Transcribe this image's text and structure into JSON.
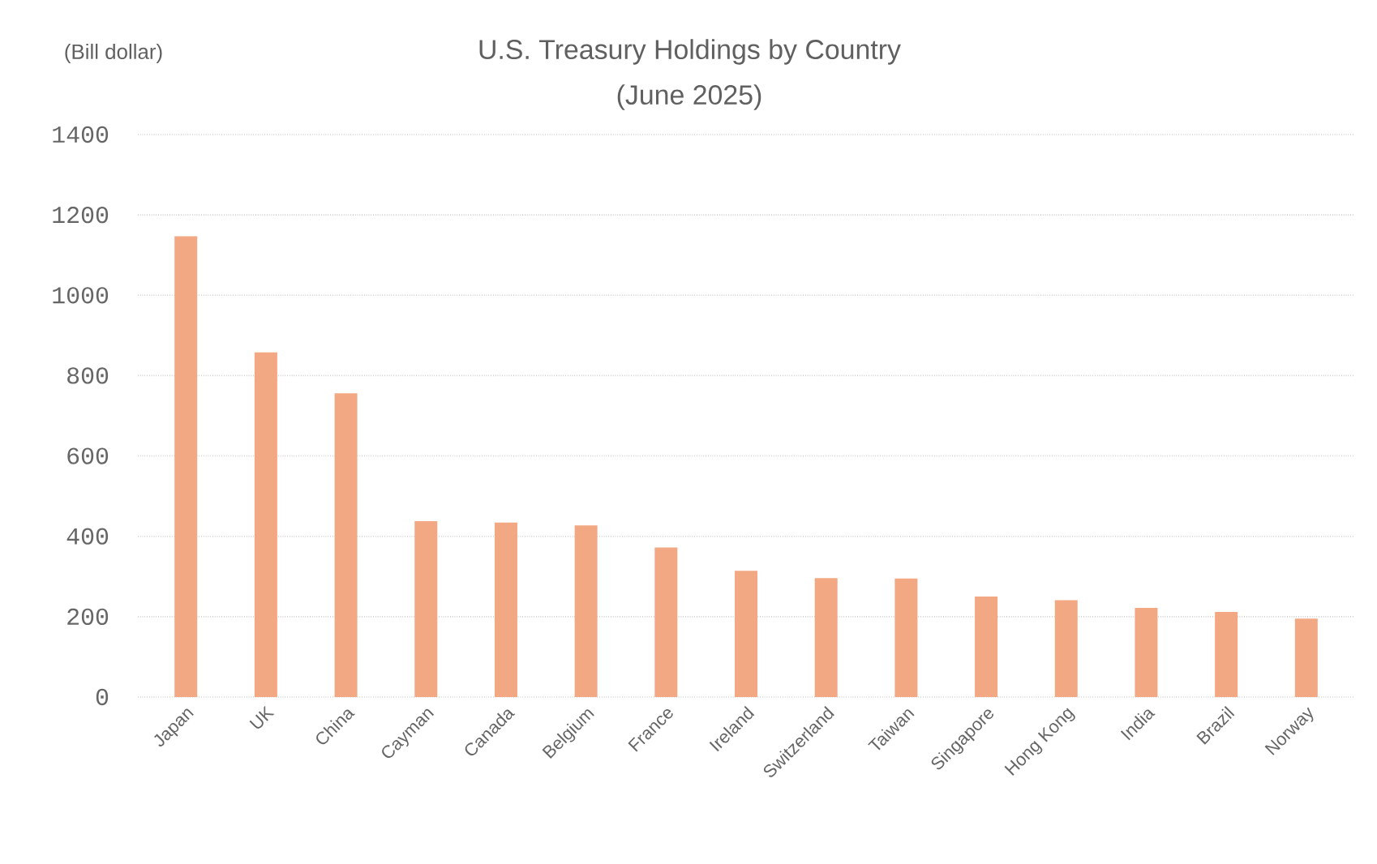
{
  "chart_data": {
    "type": "bar",
    "title": "U.S. Treasury Holdings by Country",
    "subtitle": "(June 2025)",
    "ylabel": "(Bill dollar)",
    "categories": [
      "Japan",
      "UK",
      "China",
      "Cayman",
      "Canada",
      "Belgium",
      "France",
      "Ireland",
      "Switzerland",
      "Taiwan",
      "Singapore",
      "Hong Kong",
      "India",
      "Brazil",
      "Norway"
    ],
    "values": [
      1147,
      858,
      756,
      438,
      434,
      427,
      372,
      314,
      296,
      295,
      250,
      241,
      222,
      212,
      195
    ],
    "color": "#f2a882",
    "ylim": [
      0,
      1400
    ],
    "yticks": [
      0,
      200,
      400,
      600,
      800,
      1000,
      1200,
      1400
    ],
    "grid": "y"
  }
}
